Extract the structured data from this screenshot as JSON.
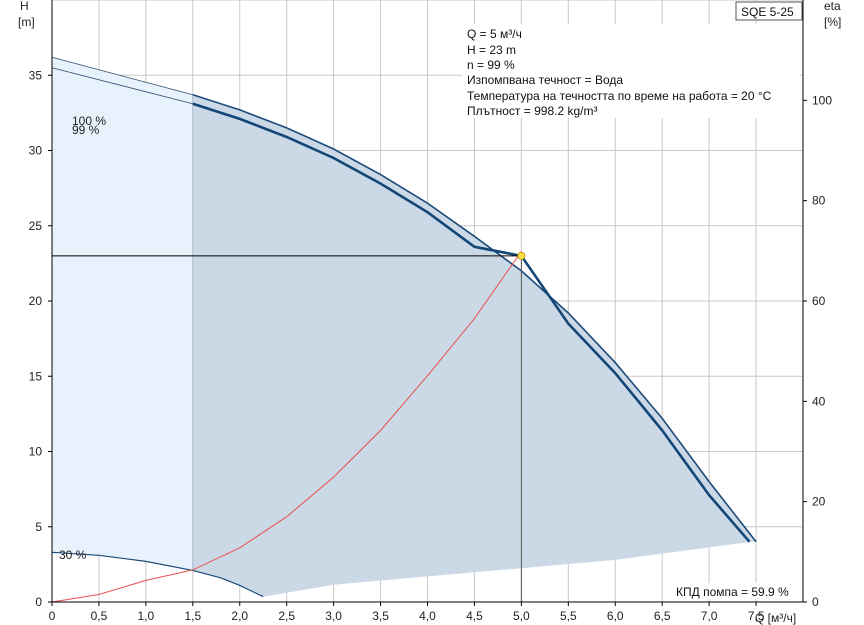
{
  "model": "SQE 5-25",
  "info_lines": [
    "Q = 5 м³/ч",
    "H = 23 m",
    "n = 99 %",
    "Изпомпвана течност = Вода",
    "Температура на течността по време на работа = 20 °C",
    "Плътност = 998.2 kg/m³"
  ],
  "efficiency_label": "КПД помпа = 59.9 %",
  "chart_data": {
    "type": "line",
    "xlabel": "Q [м³/ч]",
    "ylabel_left": [
      "H",
      "[m]"
    ],
    "ylabel_right": [
      "eta",
      "[%]"
    ],
    "xlim": [
      0,
      8.0
    ],
    "ylim_left": [
      0,
      40
    ],
    "ylim_right": [
      0,
      120
    ],
    "x_ticks": [
      "0",
      "0,5",
      "1,0",
      "1,5",
      "2,0",
      "2,5",
      "3,0",
      "3,5",
      "4,0",
      "4,5",
      "5,0",
      "5,5",
      "6,0",
      "6,5",
      "7,0",
      "7,5"
    ],
    "x_tick_values": [
      0,
      0.5,
      1.0,
      1.5,
      2.0,
      2.5,
      3.0,
      3.5,
      4.0,
      4.5,
      5.0,
      5.5,
      6.0,
      6.5,
      7.0,
      7.5
    ],
    "y_left_ticks": [
      "0",
      "5",
      "10",
      "15",
      "20",
      "25",
      "30",
      "35"
    ],
    "y_left_tick_values": [
      0,
      5,
      10,
      15,
      20,
      25,
      30,
      35
    ],
    "y_right_ticks": [
      "0",
      "20",
      "40",
      "60",
      "80",
      "100"
    ],
    "y_right_tick_values": [
      0,
      20,
      40,
      60,
      80,
      100
    ],
    "grid": true,
    "series": [
      {
        "name": "100 %",
        "axis": "left",
        "x": [
          0,
          1.5,
          2.0,
          2.5,
          3.0,
          3.5,
          4.0,
          4.5,
          5.0,
          5.5,
          6.0,
          6.5,
          7.0,
          7.5
        ],
        "y": [
          36.2,
          33.7,
          32.7,
          31.5,
          30.1,
          28.4,
          26.5,
          24.3,
          22.0,
          19.2,
          15.9,
          12.2,
          8.0,
          4.0
        ]
      },
      {
        "name": "99 %",
        "axis": "left",
        "x": [
          0,
          1.5,
          2.0,
          2.5,
          3.0,
          3.5,
          4.0,
          4.5,
          5.0,
          5.5,
          6.0,
          6.5,
          7.0,
          7.43
        ],
        "y": [
          35.5,
          33.1,
          32.1,
          30.9,
          29.5,
          27.8,
          25.9,
          23.6,
          23.0,
          18.5,
          15.2,
          11.4,
          7.1,
          4.0
        ]
      },
      {
        "name": "30 %",
        "axis": "left",
        "x": [
          0,
          0.5,
          1.0,
          1.5,
          1.8,
          2.0,
          2.25
        ],
        "y": [
          3.3,
          3.1,
          2.7,
          2.1,
          1.6,
          1.1,
          0.35
        ]
      },
      {
        "name": "",
        "axis": "right",
        "x": [
          0,
          0.5,
          1.0,
          1.5,
          2.0,
          2.5,
          3.0,
          3.5,
          4.0,
          4.5,
          5.0
        ],
        "y": [
          0,
          1.5,
          4.3,
          6.4,
          10.8,
          17.0,
          24.9,
          34.2,
          45.1,
          56.5,
          69.9
        ]
      }
    ],
    "operating_point": {
      "x": 5.0,
      "y": 23.0
    }
  }
}
